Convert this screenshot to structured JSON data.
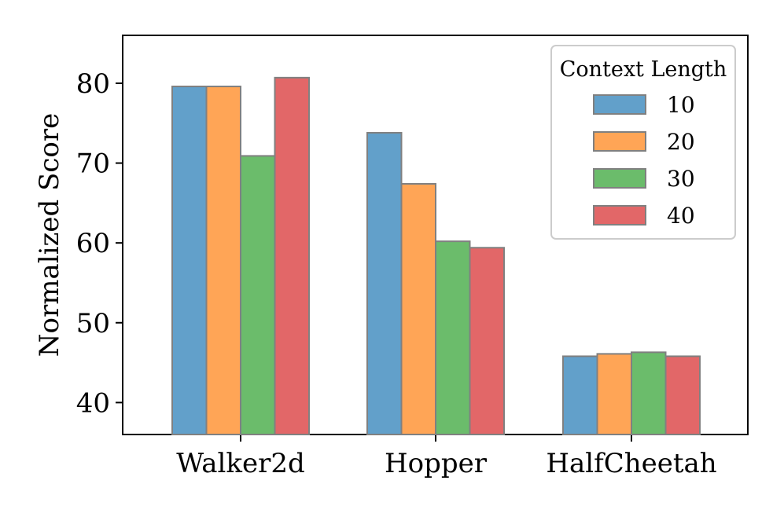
{
  "chart_data": {
    "type": "bar",
    "title": "",
    "xlabel": "",
    "ylabel": "Normalized Score",
    "ylim": [
      36,
      86
    ],
    "yticks": [
      40,
      50,
      60,
      70,
      80
    ],
    "yticklabels": [
      "40",
      "50",
      "60",
      "70",
      "80"
    ],
    "grid": false,
    "categories": [
      "Walker2d",
      "Hopper",
      "HalfCheetah"
    ],
    "series": [
      {
        "name": "10",
        "color": "#1f77b4",
        "values": [
          79.6,
          73.8,
          45.8
        ]
      },
      {
        "name": "20",
        "color": "#ff7f0e",
        "values": [
          79.6,
          67.4,
          46.1
        ]
      },
      {
        "name": "30",
        "color": "#2ca02c",
        "values": [
          70.9,
          60.2,
          46.3
        ]
      },
      {
        "name": "40",
        "color": "#d62728",
        "values": [
          80.7,
          59.4,
          45.8
        ]
      }
    ],
    "legend": {
      "title": "Context Length",
      "position": "top-right"
    }
  }
}
